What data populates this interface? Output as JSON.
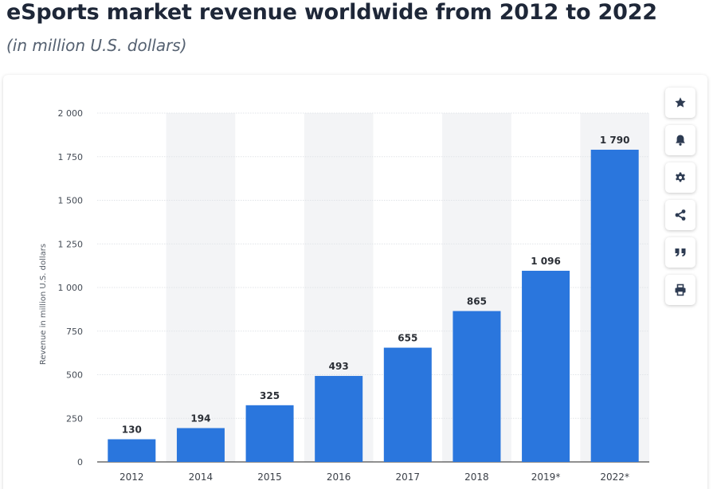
{
  "page": {
    "title": "eSports market revenue worldwide from 2012 to 2022",
    "subtitle": "(in million U.S. dollars)"
  },
  "toolbar": {
    "items": [
      {
        "icon": "star-icon"
      },
      {
        "icon": "bell-icon"
      },
      {
        "icon": "gear-icon"
      },
      {
        "icon": "share-icon"
      },
      {
        "icon": "quote-icon"
      },
      {
        "icon": "print-icon"
      }
    ]
  },
  "colors": {
    "bar": "#2a76dd",
    "alt_band": "#f3f4f6",
    "grid": "#e1e4e8",
    "title": "#1e2738"
  },
  "chart_data": {
    "type": "bar",
    "categories": [
      "2012",
      "2014",
      "2015",
      "2016",
      "2017",
      "2018",
      "2019*",
      "2022*"
    ],
    "values": [
      130,
      194,
      325,
      493,
      655,
      865,
      1096,
      1790
    ],
    "value_labels": [
      "130",
      "194",
      "325",
      "493",
      "655",
      "865",
      "1 096",
      "1 790"
    ],
    "title": "",
    "xlabel": "",
    "ylabel": "Revenue in million U.S. dollars",
    "ylim": [
      0,
      2000
    ],
    "yticks": [
      0,
      250,
      500,
      750,
      1000,
      1250,
      1500,
      1750,
      2000
    ],
    "ytick_labels": [
      "0",
      "250",
      "500",
      "750",
      "1 000",
      "1 250",
      "1 500",
      "1 750",
      "2 000"
    ],
    "grid": true,
    "alternating_column_bands": true,
    "legend": "none"
  }
}
